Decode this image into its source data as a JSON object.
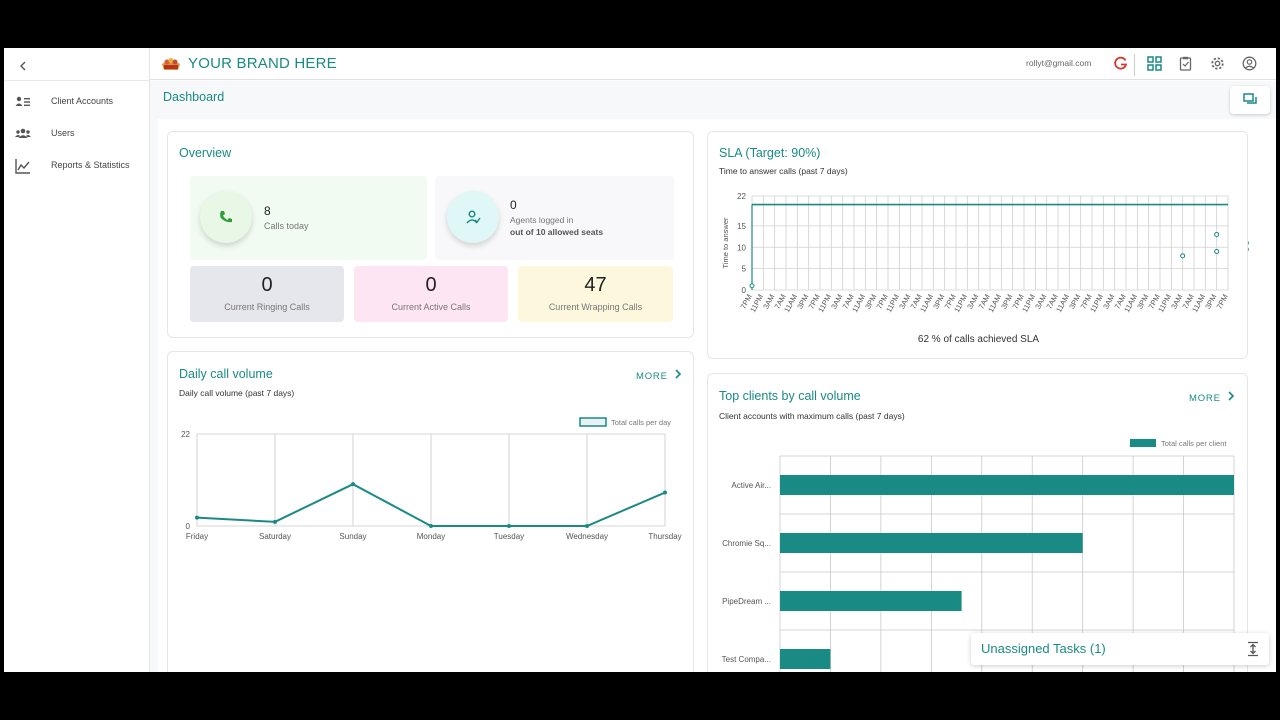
{
  "header": {
    "brand": "YOUR BRAND HERE",
    "email": "rollyt@gmail.com"
  },
  "sidebar": {
    "items": [
      {
        "label": "Client Accounts",
        "icon": "client-accounts-icon"
      },
      {
        "label": "Users",
        "icon": "users-icon"
      },
      {
        "label": "Reports & Statistics",
        "icon": "reports-icon"
      }
    ]
  },
  "page": {
    "title": "Dashboard"
  },
  "overview": {
    "title": "Overview",
    "calls_today": {
      "value": "8",
      "label": "Calls today"
    },
    "agents": {
      "value": "0",
      "label": "Agents logged in",
      "sub": "out of 10 allowed seats"
    },
    "ringing": {
      "value": "0",
      "label": "Current Ringing Calls"
    },
    "active": {
      "value": "0",
      "label": "Current Active Calls"
    },
    "wrapping": {
      "value": "47",
      "label": "Current Wrapping Calls"
    }
  },
  "sla": {
    "title": "SLA (Target: 90%)",
    "subtitle": "Time to answer calls (past 7 days)",
    "footer": "62 % of calls achieved SLA"
  },
  "daily": {
    "title": "Daily call volume",
    "subtitle": "Daily call volume (past 7 days)",
    "more": "MORE"
  },
  "top_clients": {
    "title": "Top clients by call volume",
    "subtitle": "Client accounts with maximum calls (past 7 days)",
    "more": "MORE"
  },
  "tasks": {
    "label": "Unassigned Tasks (1)"
  },
  "colors": {
    "accent": "#1a8a84"
  },
  "chart_data": [
    {
      "type": "scatter",
      "ylabel": "Time to answer",
      "yticks": [
        0,
        5,
        10,
        15,
        22
      ],
      "ylim": [
        0,
        22
      ],
      "x": [
        "7PM",
        "11PM",
        "3AM",
        "7AM",
        "11AM",
        "3PM",
        "7PM",
        "11PM",
        "3AM",
        "7AM",
        "11AM",
        "3PM",
        "7PM",
        "11PM",
        "3AM",
        "7AM",
        "11AM",
        "3PM",
        "7PM",
        "11PM",
        "3AM",
        "7AM",
        "11AM",
        "3PM",
        "7PM",
        "11PM",
        "3AM",
        "7AM",
        "11AM",
        "3PM",
        "7PM",
        "11PM",
        "3AM",
        "7AM",
        "11AM",
        "3PM",
        "7PM",
        "11PM",
        "3AM",
        "7AM",
        "11AM",
        "3PM",
        "7PM"
      ],
      "target_line": 20,
      "points": [
        {
          "x": 0,
          "y": 1
        },
        {
          "x": 38,
          "y": 8
        },
        {
          "x": 41,
          "y": 13
        },
        {
          "x": 41,
          "y": 9
        },
        {
          "x": 44,
          "y": 11
        },
        {
          "x": 44,
          "y": 9.5
        }
      ],
      "grid": true
    },
    {
      "type": "line",
      "categories": [
        "Friday",
        "Saturday",
        "Sunday",
        "Monday",
        "Tuesday",
        "Wednesday",
        "Thursday"
      ],
      "series": [
        {
          "name": "Total calls per day",
          "values": [
            2,
            1,
            10,
            0,
            0,
            0,
            8
          ]
        }
      ],
      "yticks": [
        0,
        22
      ],
      "ylim": [
        0,
        22
      ],
      "legend": "top-right",
      "grid": true
    },
    {
      "type": "bar",
      "orientation": "horizontal",
      "categories": [
        "Active Air...",
        "Chromie Sq...",
        "PipeDream ...",
        "Test Compa..."
      ],
      "series": [
        {
          "name": "Total calls per client",
          "values": [
            9,
            6,
            3.6,
            1
          ]
        }
      ],
      "xlim": [
        0,
        9
      ],
      "legend": "top-right",
      "grid": true
    }
  ]
}
